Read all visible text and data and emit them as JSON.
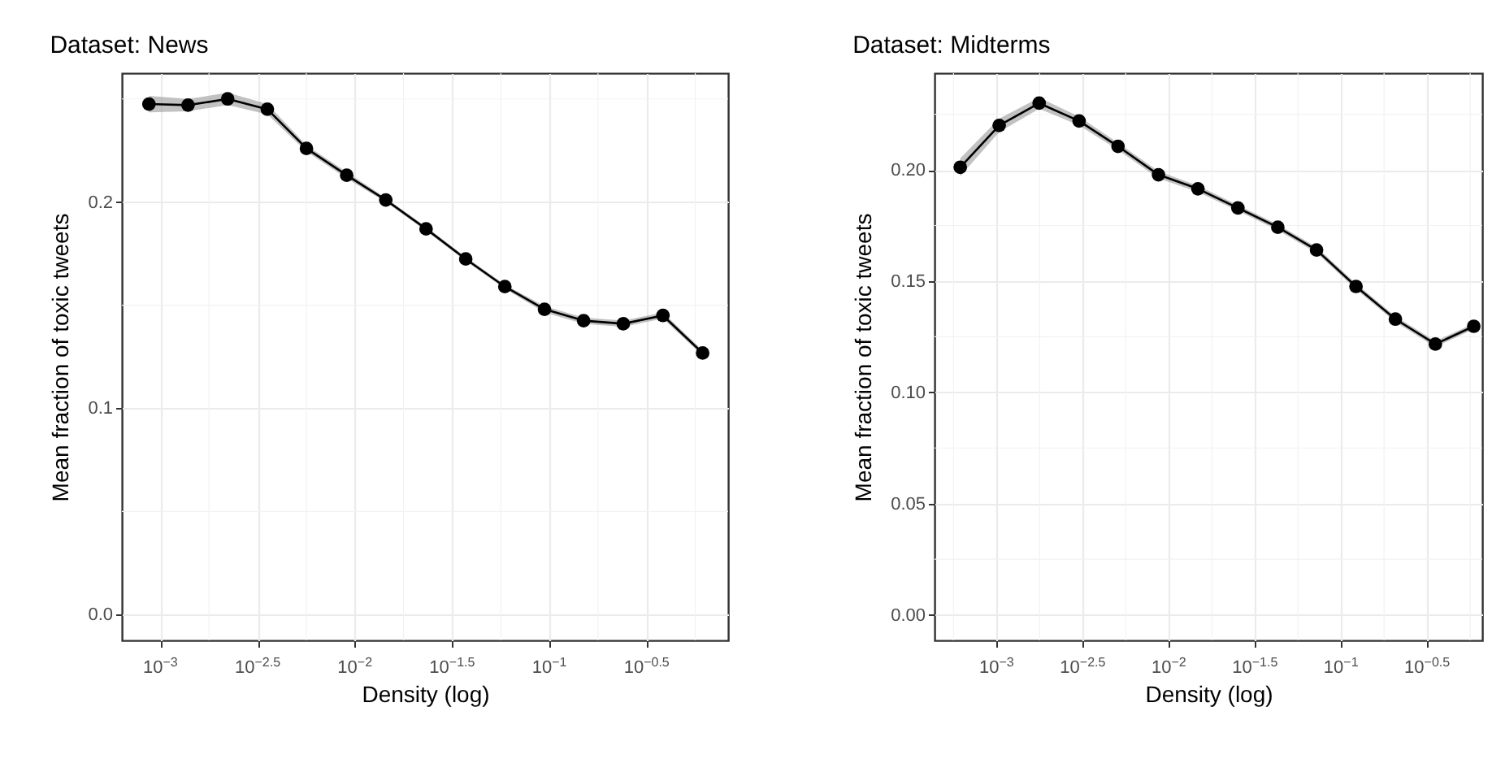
{
  "chart_data": [
    {
      "type": "line",
      "title": "Dataset: News",
      "xlabel": "Density (log)",
      "ylabel": "Mean fraction of toxic tweets",
      "log": "x",
      "grid": true,
      "marker": "circle",
      "line_style": "solid",
      "xlim": [
        0.000634,
        0.83
      ],
      "ylim": [
        -0.0125,
        0.2625
      ],
      "xticks": [
        {
          "value": 0.001,
          "label": "10$^{−3}$"
        },
        {
          "value": 0.00316228,
          "label": "10$^{−2.5}$"
        },
        {
          "value": 0.01,
          "label": "10$^{−2}$"
        },
        {
          "value": 0.0316228,
          "label": "10$^{−1.5}$"
        },
        {
          "value": 0.1,
          "label": "10$^{−1}$"
        },
        {
          "value": 0.316228,
          "label": "10$^{−0.5}$"
        }
      ],
      "yticks": [
        {
          "value": 0,
          "label": "0.0"
        },
        {
          "value": 0.1,
          "label": "0.1"
        },
        {
          "value": 0.2,
          "label": "0.2"
        }
      ],
      "series": [
        {
          "color": "#000000",
          "x": [
            0.000873,
            0.001387,
            0.002218,
            0.003548,
            0.005636,
            0.009078,
            0.01442,
            0.02323,
            0.03715,
            0.05902,
            0.09441,
            0.15,
            0.2399,
            0.3837,
            0.6138
          ],
          "values": [
            0.2475,
            0.247,
            0.25,
            0.245,
            0.226,
            0.213,
            0.201,
            0.187,
            0.1724,
            0.159,
            0.148,
            0.1425,
            0.141,
            0.145,
            0.1268
          ],
          "lower": [
            0.2435,
            0.244,
            0.247,
            0.2425,
            0.2245,
            0.2115,
            0.2,
            0.186,
            0.1714,
            0.158,
            0.1465,
            0.141,
            0.1395,
            0.1435,
            0.1255
          ],
          "upper": [
            0.2515,
            0.25,
            0.253,
            0.2475,
            0.2275,
            0.2145,
            0.202,
            0.188,
            0.1734,
            0.16,
            0.1495,
            0.144,
            0.1425,
            0.1465,
            0.1281
          ]
        }
      ]
    },
    {
      "type": "line",
      "title": "Dataset: Midterms",
      "xlabel": "Density (log)",
      "ylabel": "Mean fraction of toxic tweets",
      "log": "x",
      "grid": true,
      "marker": "circle",
      "line_style": "solid",
      "xlim": [
        0.000436,
        0.661
      ],
      "ylim": [
        -0.0115,
        0.2435
      ],
      "xticks": [
        {
          "value": 0.001,
          "label": "10$^{−3}$"
        },
        {
          "value": 0.00316228,
          "label": "10$^{−2.5}$"
        },
        {
          "value": 0.01,
          "label": "10$^{−2}$"
        },
        {
          "value": 0.0316228,
          "label": "10$^{−1.5}$"
        },
        {
          "value": 0.1,
          "label": "10$^{−1}$"
        },
        {
          "value": 0.316228,
          "label": "10$^{−0.5}$"
        }
      ],
      "yticks": [
        {
          "value": 0,
          "label": "0.00"
        },
        {
          "value": 0.05,
          "label": "0.05"
        },
        {
          "value": 0.1,
          "label": "0.10"
        },
        {
          "value": 0.15,
          "label": "0.15"
        },
        {
          "value": 0.2,
          "label": "0.20"
        }
      ],
      "series": [
        {
          "color": "#000000",
          "x": [
            0.000615,
            0.001035,
            0.001766,
            0.003013,
            0.00507,
            0.00871,
            0.01476,
            0.02518,
            0.04295,
            0.07211,
            0.1222,
            0.207,
            0.3532,
            0.5902
          ],
          "values": [
            0.2012,
            0.22,
            0.23,
            0.222,
            0.2106,
            0.1978,
            0.1915,
            0.1829,
            0.1742,
            0.164,
            0.1476,
            0.1329,
            0.1217,
            0.1297
          ],
          "lower": [
            0.1972,
            0.217,
            0.2275,
            0.22,
            0.209,
            0.1962,
            0.1901,
            0.1816,
            0.1729,
            0.1627,
            0.1463,
            0.1316,
            0.1204,
            0.1284
          ],
          "upper": [
            0.2052,
            0.223,
            0.2325,
            0.224,
            0.2122,
            0.1994,
            0.1929,
            0.1842,
            0.1755,
            0.1653,
            0.1489,
            0.1342,
            0.123,
            0.131
          ]
        }
      ]
    }
  ]
}
